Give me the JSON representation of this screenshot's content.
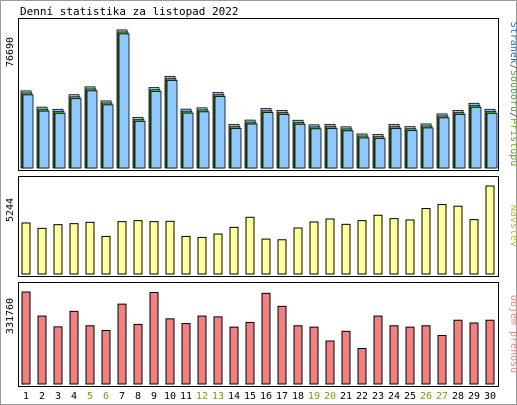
{
  "title": "Denní statistika za listopad 2022",
  "colors": {
    "frame": "#000000",
    "border": "#9a9a9a",
    "weekday_label": "#000000",
    "weekend_label": "#6fa320",
    "hits_fill": "#8ec8ff",
    "files_fill": "#5c9e38",
    "pages_fill": "#2a6cbf",
    "visits_fill": "#ffff99",
    "volume_fill": "#f28080",
    "shadow": "#4a4a4a"
  },
  "chart_data": [
    {
      "type": "bar",
      "panel": "hits",
      "ymax_label": "76690",
      "side_legend": [
        {
          "text": "Stránek",
          "color": "#2a6cbf"
        },
        {
          "text": "/",
          "color": "#444444"
        },
        {
          "text": "Souborů",
          "color": "#5c9e38"
        },
        {
          "text": "/",
          "color": "#444444"
        },
        {
          "text": "Přístupů",
          "color": "#6fa320"
        }
      ],
      "ylim": [
        0,
        76690
      ],
      "categories": [
        "1",
        "2",
        "3",
        "4",
        "5",
        "6",
        "7",
        "8",
        "9",
        "10",
        "11",
        "12",
        "13",
        "14",
        "15",
        "16",
        "17",
        "18",
        "19",
        "20",
        "21",
        "22",
        "23",
        "24",
        "25",
        "26",
        "27",
        "28",
        "29",
        "30"
      ],
      "weekend": [
        5,
        6,
        12,
        13,
        19,
        20,
        26,
        27
      ],
      "series": [
        {
          "values": [
            40600,
            31700,
            30500,
            38500,
            42800,
            35100,
            74000,
            26100,
            42400,
            48500,
            30600,
            31300,
            39700,
            22200,
            24600,
            30900,
            29900,
            24500,
            22000,
            22200,
            20900,
            17000,
            16700,
            22200,
            21000,
            22500,
            28000,
            29900,
            33800,
            30500
          ]
        }
      ]
    },
    {
      "type": "bar",
      "panel": "visits",
      "ymax_label": "5244",
      "side_legend": [
        {
          "text": "Návštěv",
          "color": "#bdbd3c"
        }
      ],
      "ylim": [
        0,
        5244
      ],
      "categories": [
        "1",
        "2",
        "3",
        "4",
        "5",
        "6",
        "7",
        "8",
        "9",
        "10",
        "11",
        "12",
        "13",
        "14",
        "15",
        "16",
        "17",
        "18",
        "19",
        "20",
        "21",
        "22",
        "23",
        "24",
        "25",
        "26",
        "27",
        "28",
        "29",
        "30"
      ],
      "weekend": [
        5,
        6,
        12,
        13,
        19,
        20,
        26,
        27
      ],
      "series": [
        {
          "values": [
            3040,
            2720,
            2940,
            3000,
            3080,
            2240,
            3120,
            3180,
            3120,
            3140,
            2240,
            2180,
            2380,
            2780,
            3380,
            2080,
            2040,
            2740,
            3100,
            3280,
            2960,
            3180,
            3500,
            3300,
            3220,
            3900,
            4140,
            4040,
            3240,
            5244
          ]
        }
      ]
    },
    {
      "type": "bar",
      "panel": "volume",
      "ymax_label": "331760",
      "side_legend": [
        {
          "text": "Objem přenosu",
          "color": "#e08a8a"
        }
      ],
      "ylim": [
        0,
        331760
      ],
      "categories": [
        "1",
        "2",
        "3",
        "4",
        "5",
        "6",
        "7",
        "8",
        "9",
        "10",
        "11",
        "12",
        "13",
        "14",
        "15",
        "16",
        "17",
        "18",
        "19",
        "20",
        "21",
        "22",
        "23",
        "24",
        "25",
        "26",
        "27",
        "28",
        "29",
        "30"
      ],
      "weekend": [
        5,
        6,
        12,
        13,
        19,
        20,
        26,
        27
      ],
      "series": [
        {
          "values": [
            331760,
            245000,
            206000,
            262000,
            210000,
            193000,
            288000,
            215000,
            330000,
            235000,
            218000,
            245000,
            242000,
            205000,
            222000,
            327000,
            280000,
            210000,
            205000,
            155000,
            190000,
            128000,
            245000,
            210000,
            205000,
            210000,
            175000,
            230000,
            220000,
            230000
          ]
        }
      ]
    }
  ]
}
